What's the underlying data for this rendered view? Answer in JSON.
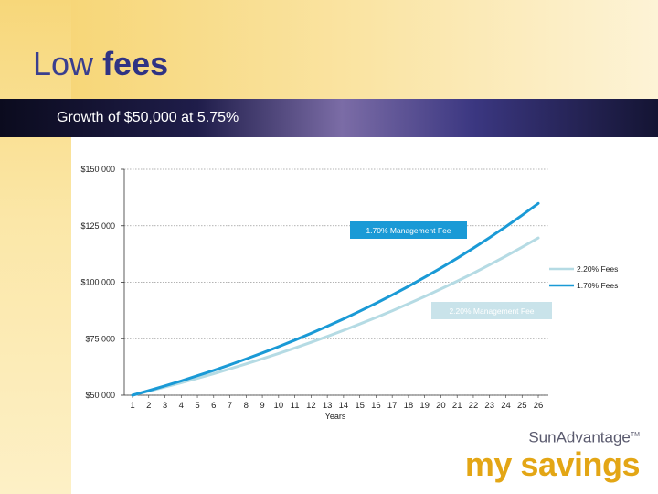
{
  "header": {
    "title_plain": "Low",
    "title_bold": "fees",
    "subtitle": "Growth of $50,000 at 5.75%"
  },
  "brand": {
    "company": "SunAdvantage",
    "trademark": "TM",
    "tagline": "my savings"
  },
  "colors": {
    "title": "#3a3f8f",
    "tagline": "#e3a615",
    "series_low_fee": "#1a9ad6",
    "series_high_fee": "#b5dbe4"
  },
  "chart_data": {
    "type": "line",
    "xlabel": "Years",
    "ylabel": "",
    "ylim": [
      50000,
      150000
    ],
    "yticks": [
      {
        "value": 50000,
        "label": "$50 000"
      },
      {
        "value": 75000,
        "label": "$75 000"
      },
      {
        "value": 100000,
        "label": "$100 000"
      },
      {
        "value": 125000,
        "label": "$125 000"
      },
      {
        "value": 150000,
        "label": "$150 000"
      }
    ],
    "x": [
      1,
      2,
      3,
      4,
      5,
      6,
      7,
      8,
      9,
      10,
      11,
      12,
      13,
      14,
      15,
      16,
      17,
      18,
      19,
      20,
      21,
      22,
      23,
      24,
      25,
      26
    ],
    "series": [
      {
        "name": "2.20% Fees",
        "color": "#b5dbe4",
        "values": [
          50000,
          51775,
          53613,
          55516,
          57487,
          59528,
          61641,
          63829,
          66095,
          68442,
          70871,
          73387,
          75993,
          78690,
          81484,
          84376,
          87372,
          90474,
          93686,
          97011,
          100455,
          104021,
          107714,
          111538,
          115497,
          119597
        ]
      },
      {
        "name": "1.70% Fees",
        "color": "#1a9ad6",
        "values": [
          50000,
          52025,
          54132,
          56324,
          58605,
          60979,
          63448,
          66018,
          68692,
          71474,
          74368,
          77380,
          80514,
          83775,
          87168,
          90698,
          94371,
          98193,
          102170,
          106308,
          110614,
          115094,
          119755,
          124605,
          129652,
          134903
        ]
      }
    ],
    "legend": {
      "position": "right",
      "entries": [
        "2.20% Fees",
        "1.70% Fees"
      ]
    },
    "annotations": [
      {
        "text": "1.70% Management Fee",
        "series": "1.70% Fees",
        "near_x": 18
      },
      {
        "text": "2.20% Management Fee",
        "series": "2.20% Fees",
        "near_x": 22
      }
    ],
    "grid": true
  }
}
